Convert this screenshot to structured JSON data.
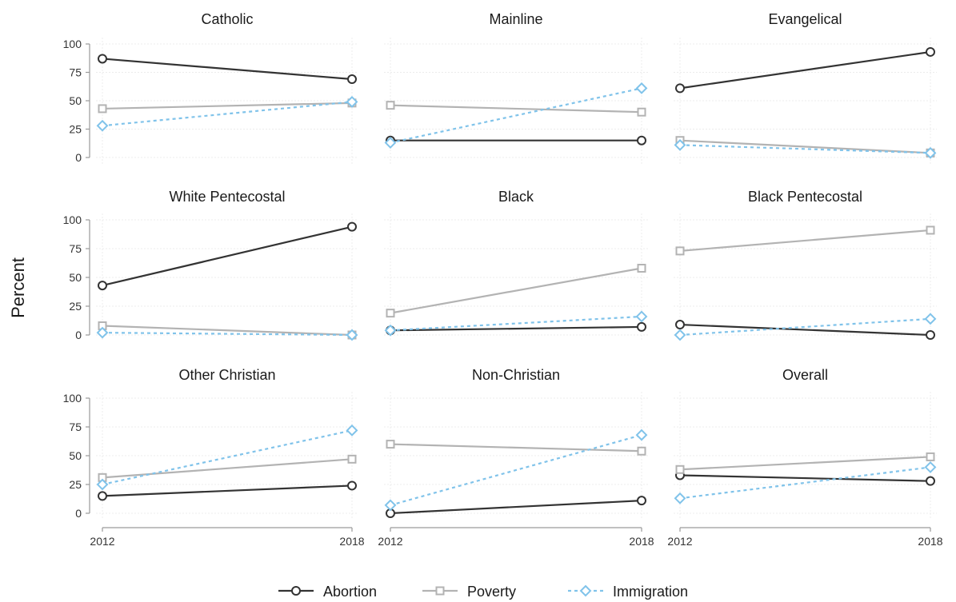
{
  "chart_data": {
    "type": "line",
    "ylabel": "Percent",
    "x": [
      "2012",
      "2018"
    ],
    "ylim": [
      0,
      100
    ],
    "yticks": [
      0,
      25,
      50,
      75,
      100
    ],
    "grid": true,
    "legend_position": "bottom",
    "series_styles": [
      {
        "name": "Abortion",
        "color": "#333333",
        "marker": "circle",
        "dash": "solid"
      },
      {
        "name": "Poverty",
        "color": "#b3b3b3",
        "marker": "square",
        "dash": "solid"
      },
      {
        "name": "Immigration",
        "color": "#80c3ea",
        "marker": "diamond",
        "dash": "dotted"
      }
    ],
    "panels": [
      {
        "title": "Catholic",
        "series": [
          {
            "name": "Abortion",
            "values": [
              87,
              69
            ]
          },
          {
            "name": "Poverty",
            "values": [
              43,
              48
            ]
          },
          {
            "name": "Immigration",
            "values": [
              28,
              49
            ]
          }
        ]
      },
      {
        "title": "Mainline",
        "series": [
          {
            "name": "Abortion",
            "values": [
              15,
              15
            ]
          },
          {
            "name": "Poverty",
            "values": [
              46,
              40
            ]
          },
          {
            "name": "Immigration",
            "values": [
              13,
              61
            ]
          }
        ]
      },
      {
        "title": "Evangelical",
        "series": [
          {
            "name": "Abortion",
            "values": [
              61,
              93
            ]
          },
          {
            "name": "Poverty",
            "values": [
              15,
              4
            ]
          },
          {
            "name": "Immigration",
            "values": [
              11,
              4
            ]
          }
        ]
      },
      {
        "title": "White Pentecostal",
        "series": [
          {
            "name": "Abortion",
            "values": [
              43,
              94
            ]
          },
          {
            "name": "Poverty",
            "values": [
              8,
              0
            ]
          },
          {
            "name": "Immigration",
            "values": [
              2,
              0
            ]
          }
        ]
      },
      {
        "title": "Black",
        "series": [
          {
            "name": "Abortion",
            "values": [
              4,
              7
            ]
          },
          {
            "name": "Poverty",
            "values": [
              19,
              58
            ]
          },
          {
            "name": "Immigration",
            "values": [
              4,
              16
            ]
          }
        ]
      },
      {
        "title": "Black Pentecostal",
        "series": [
          {
            "name": "Abortion",
            "values": [
              9,
              0
            ]
          },
          {
            "name": "Poverty",
            "values": [
              73,
              91
            ]
          },
          {
            "name": "Immigration",
            "values": [
              0,
              14
            ]
          }
        ]
      },
      {
        "title": "Other Christian",
        "series": [
          {
            "name": "Abortion",
            "values": [
              15,
              24
            ]
          },
          {
            "name": "Poverty",
            "values": [
              31,
              47
            ]
          },
          {
            "name": "Immigration",
            "values": [
              25,
              72
            ]
          }
        ]
      },
      {
        "title": "Non-Christian",
        "series": [
          {
            "name": "Abortion",
            "values": [
              0,
              11
            ]
          },
          {
            "name": "Poverty",
            "values": [
              60,
              54
            ]
          },
          {
            "name": "Immigration",
            "values": [
              7,
              68
            ]
          }
        ]
      },
      {
        "title": "Overall",
        "series": [
          {
            "name": "Abortion",
            "values": [
              33,
              28
            ]
          },
          {
            "name": "Poverty",
            "values": [
              38,
              49
            ]
          },
          {
            "name": "Immigration",
            "values": [
              13,
              40
            ]
          }
        ]
      }
    ]
  }
}
